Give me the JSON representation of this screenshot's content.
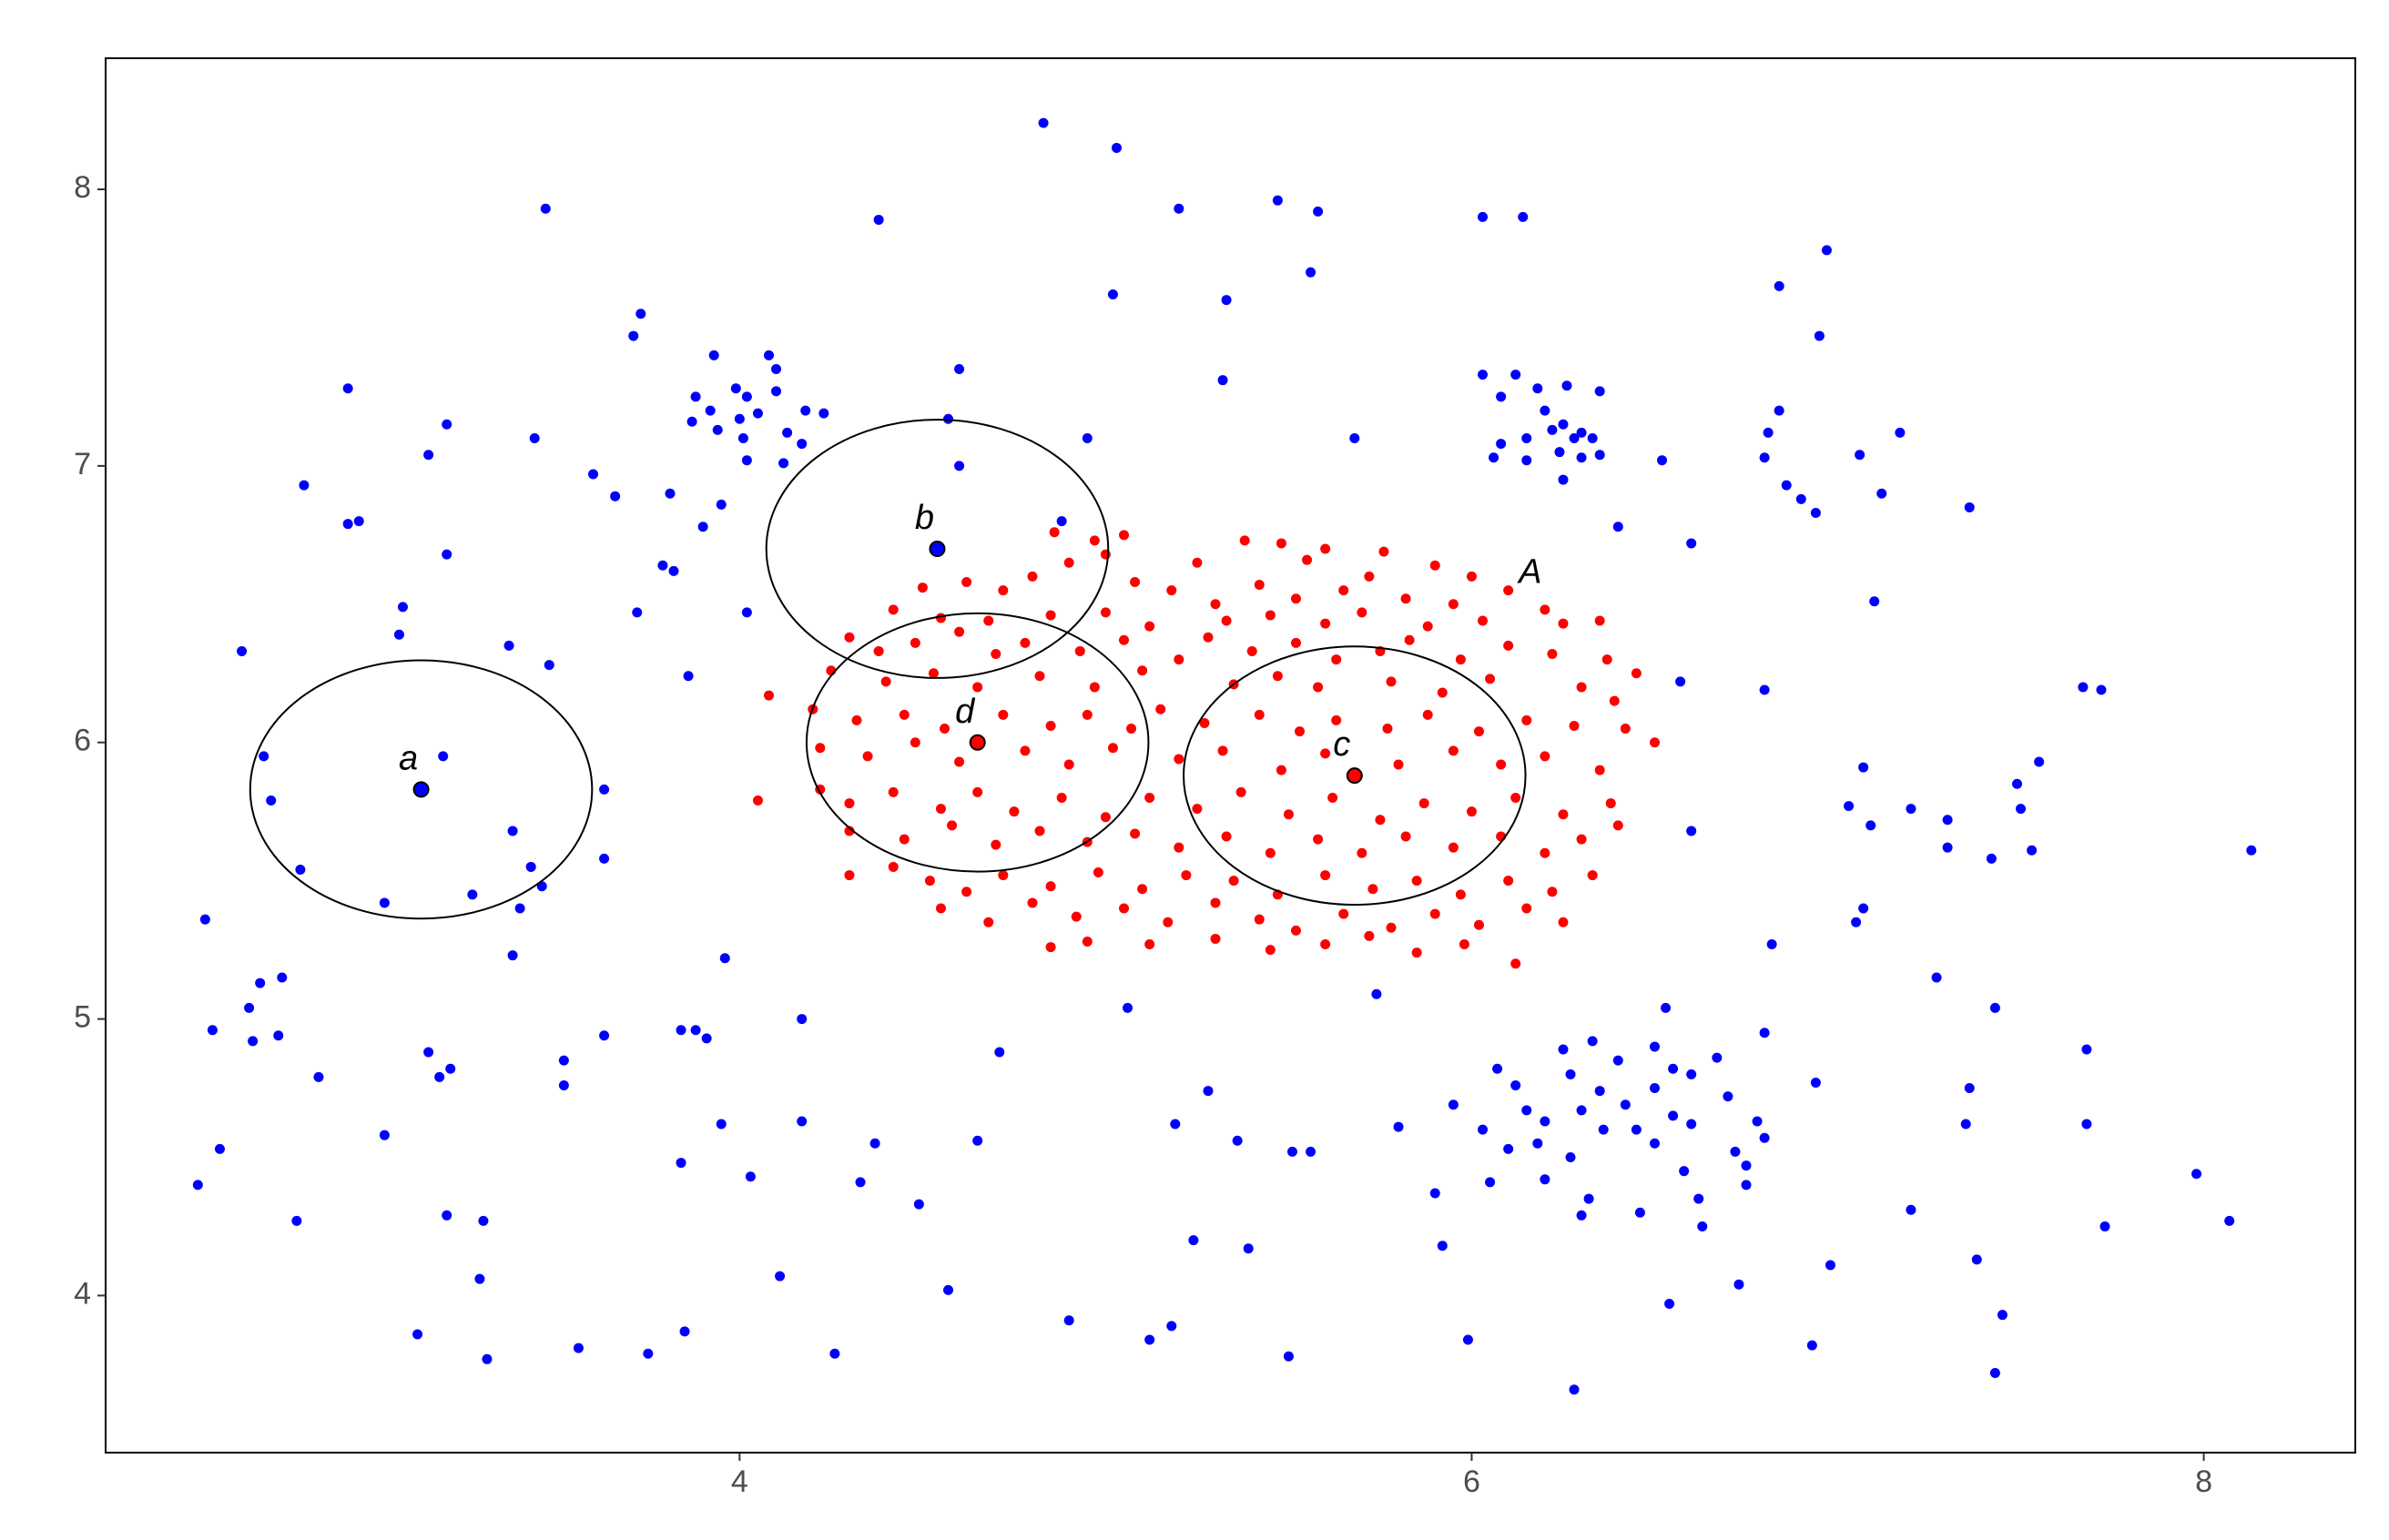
{
  "chart_data": {
    "type": "scatter",
    "xlim": [
      2.268,
      8.414
    ],
    "ylim": [
      3.432,
      8.474
    ],
    "xticks": [
      4,
      6,
      8
    ],
    "yticks": [
      4,
      5,
      6,
      7,
      8
    ],
    "series": [
      {
        "color": "#0000ff",
        "x": [
          4.83,
          5.03,
          3.47,
          4.38,
          5.2,
          5.47,
          5.58,
          6.03,
          6.14,
          5.56,
          5.02,
          5.33,
          3.73,
          3.71,
          6.97,
          6.84,
          6.95,
          2.93,
          3.2,
          3.15,
          3.44,
          2.81,
          2.93,
          2.96,
          3.2,
          3.6,
          3.66,
          3.81,
          3.9,
          3.79,
          3.82,
          3.72,
          4.02,
          3.08,
          3.07,
          2.64,
          3.37,
          3.48,
          3.86,
          3.93,
          4.08,
          4.1,
          3.99,
          4.02,
          3.88,
          3.92,
          4.0,
          4.05,
          3.87,
          3.94,
          4.1,
          4.18,
          4.01,
          4.13,
          4.17,
          4.02,
          4.12,
          3.95,
          4.23,
          4.6,
          4.57,
          4.6,
          4.95,
          4.88,
          5.32,
          5.68,
          6.03,
          6.12,
          6.08,
          6.18,
          6.26,
          6.35,
          6.2,
          6.25,
          6.3,
          6.22,
          6.28,
          6.33,
          6.08,
          6.15,
          6.24,
          6.3,
          6.35,
          6.25,
          6.06,
          6.15,
          6.4,
          6.52,
          6.84,
          6.81,
          6.8,
          6.86,
          6.9,
          6.94,
          7.06,
          7.12,
          7.17,
          7.36,
          7.1,
          6.6,
          6.57,
          6.8,
          7.67,
          7.72,
          8.13,
          7.07,
          7.03,
          7.09,
          7.2,
          7.3,
          7.3,
          7.42,
          7.49,
          7.55,
          7.53,
          7.5,
          7.07,
          7.05,
          6.82,
          7.27,
          7.43,
          6.6,
          2.7,
          2.72,
          2.8,
          3.19,
          3.63,
          3.38,
          3.43,
          3.46,
          3.27,
          3.4,
          3.03,
          3.63,
          2.54,
          3.38,
          2.75,
          2.69,
          2.56,
          2.66,
          2.67,
          2.74,
          3.52,
          3.52,
          3.63,
          3.15,
          3.18,
          3.21,
          2.85,
          3.03,
          2.58,
          2.52,
          2.79,
          3.2,
          3.3,
          3.29,
          3.12,
          3.31,
          3.56,
          3.75,
          3.85,
          3.84,
          3.88,
          3.91,
          3.84,
          3.95,
          3.96,
          4.03,
          4.11,
          4.17,
          4.17,
          4.33,
          4.37,
          4.49,
          4.26,
          4.57,
          4.65,
          4.71,
          5.06,
          5.19,
          5.24,
          5.28,
          5.36,
          5.39,
          5.51,
          5.56,
          5.5,
          4.9,
          5.12,
          5.18,
          5.74,
          5.8,
          5.9,
          5.92,
          5.99,
          6.28,
          5.95,
          6.03,
          6.07,
          6.12,
          6.1,
          6.05,
          6.15,
          6.18,
          6.2,
          6.25,
          6.27,
          6.2,
          6.3,
          6.35,
          6.33,
          6.4,
          6.42,
          6.36,
          6.27,
          6.32,
          6.3,
          6.45,
          6.5,
          6.5,
          6.5,
          6.55,
          6.55,
          6.58,
          6.6,
          6.6,
          6.62,
          6.63,
          6.67,
          6.7,
          6.72,
          6.75,
          6.75,
          6.78,
          6.8,
          6.46,
          6.53,
          6.54,
          6.73,
          6.8,
          6.94,
          6.98,
          6.93,
          7.2,
          7.36,
          7.35,
          7.38,
          7.45,
          7.43,
          7.68,
          7.68,
          7.73,
          7.98,
          8.07
        ],
        "values": [
          8.24,
          8.15,
          7.93,
          7.89,
          7.93,
          7.96,
          7.92,
          7.9,
          7.9,
          7.7,
          7.62,
          7.6,
          7.55,
          7.47,
          7.78,
          7.65,
          7.47,
          7.28,
          7.15,
          7.04,
          7.1,
          6.93,
          6.79,
          6.8,
          6.68,
          6.97,
          6.89,
          6.9,
          6.78,
          6.64,
          6.62,
          6.47,
          6.47,
          6.49,
          6.39,
          6.33,
          6.35,
          6.28,
          6.24,
          7.4,
          7.4,
          7.35,
          7.28,
          7.25,
          7.25,
          7.2,
          7.17,
          7.19,
          7.16,
          7.13,
          7.27,
          7.2,
          7.1,
          7.12,
          7.08,
          7.02,
          7.01,
          6.86,
          7.19,
          7.35,
          7.17,
          7.0,
          7.1,
          6.8,
          7.31,
          7.1,
          7.33,
          7.33,
          7.25,
          7.28,
          7.29,
          7.27,
          7.2,
          7.15,
          7.12,
          7.13,
          7.1,
          7.1,
          7.08,
          7.1,
          7.05,
          7.03,
          7.04,
          6.95,
          7.03,
          7.02,
          6.78,
          7.02,
          7.2,
          7.12,
          7.03,
          6.93,
          6.88,
          6.83,
          7.04,
          6.9,
          7.12,
          6.85,
          6.51,
          6.72,
          6.22,
          6.19,
          6.2,
          6.19,
          5.61,
          5.91,
          5.77,
          5.7,
          5.76,
          5.72,
          5.62,
          5.58,
          5.85,
          5.93,
          5.61,
          5.76,
          5.4,
          5.35,
          5.27,
          5.15,
          5.04,
          5.68,
          5.95,
          5.79,
          5.54,
          5.95,
          5.83,
          5.68,
          5.55,
          5.48,
          5.45,
          5.4,
          5.42,
          5.58,
          5.36,
          5.23,
          5.15,
          5.13,
          4.96,
          5.04,
          4.92,
          4.94,
          4.85,
          4.76,
          4.94,
          4.88,
          4.79,
          4.82,
          4.79,
          4.58,
          4.53,
          4.4,
          4.27,
          4.29,
          4.27,
          4.06,
          3.86,
          3.77,
          3.81,
          3.79,
          3.87,
          4.96,
          4.96,
          4.93,
          4.48,
          4.62,
          5.22,
          4.43,
          4.07,
          5.0,
          4.63,
          4.41,
          4.55,
          4.33,
          3.79,
          4.02,
          4.56,
          4.88,
          5.04,
          4.62,
          4.2,
          4.74,
          4.56,
          4.17,
          4.52,
          4.52,
          3.78,
          3.91,
          3.84,
          3.89,
          5.09,
          4.61,
          4.37,
          4.18,
          3.84,
          3.66,
          4.69,
          4.6,
          4.82,
          4.76,
          4.53,
          4.41,
          4.67,
          4.55,
          4.63,
          4.89,
          4.8,
          4.42,
          4.67,
          4.74,
          4.92,
          4.85,
          4.69,
          4.6,
          4.5,
          4.35,
          4.29,
          4.6,
          4.9,
          4.75,
          4.55,
          4.82,
          4.65,
          4.45,
          4.8,
          4.62,
          4.35,
          4.25,
          4.86,
          4.72,
          4.52,
          4.47,
          4.4,
          4.63,
          4.57,
          4.3,
          5.04,
          3.97,
          4.04,
          4.95,
          4.77,
          4.11,
          3.82,
          4.31,
          4.75,
          4.62,
          4.13,
          3.93,
          3.72,
          4.89,
          4.62,
          4.25,
          4.44,
          4.27
        ]
      },
      {
        "color": "#ff0000",
        "x": [
          4.86,
          4.97,
          5.05,
          5.38,
          5.48,
          5.6,
          5.76,
          4.9,
          5.0,
          5.25,
          5.55,
          5.9,
          6.0,
          4.5,
          4.62,
          4.72,
          4.8,
          5.08,
          5.18,
          5.3,
          5.42,
          5.52,
          5.65,
          5.72,
          5.82,
          5.95,
          6.1,
          6.2,
          4.42,
          4.55,
          4.68,
          4.85,
          5.0,
          5.12,
          5.33,
          5.45,
          5.6,
          5.7,
          5.88,
          6.03,
          6.25,
          6.35,
          4.3,
          4.38,
          4.48,
          4.6,
          4.7,
          4.78,
          4.93,
          5.05,
          5.2,
          5.28,
          5.4,
          5.52,
          5.63,
          5.75,
          5.83,
          5.97,
          6.1,
          6.22,
          6.37,
          6.45,
          4.25,
          4.4,
          4.53,
          4.65,
          4.82,
          4.97,
          5.1,
          5.35,
          5.47,
          5.58,
          5.78,
          5.92,
          6.05,
          6.3,
          6.39,
          4.08,
          4.2,
          4.32,
          4.45,
          4.56,
          4.72,
          4.85,
          4.95,
          5.07,
          5.15,
          5.27,
          5.42,
          5.53,
          5.63,
          5.77,
          5.88,
          6.02,
          6.15,
          6.28,
          6.42,
          6.5,
          4.22,
          4.35,
          4.48,
          4.6,
          4.78,
          4.9,
          5.02,
          5.2,
          5.32,
          5.48,
          5.6,
          5.8,
          5.95,
          6.08,
          6.2,
          6.35,
          4.05,
          4.22,
          4.3,
          4.42,
          4.55,
          4.65,
          4.75,
          4.88,
          5.0,
          5.12,
          5.25,
          5.37,
          5.5,
          5.62,
          5.75,
          5.87,
          6.0,
          6.12,
          6.25,
          6.38,
          4.3,
          4.45,
          4.58,
          4.7,
          4.82,
          4.95,
          5.08,
          5.2,
          5.33,
          5.45,
          5.58,
          5.7,
          5.82,
          5.95,
          6.08,
          6.2,
          6.3,
          6.4,
          4.3,
          4.42,
          4.52,
          4.62,
          4.72,
          4.85,
          4.98,
          5.1,
          5.22,
          5.35,
          5.47,
          5.6,
          5.73,
          5.85,
          5.97,
          6.1,
          6.22,
          6.33,
          4.55,
          4.68,
          4.8,
          4.92,
          5.05,
          5.17,
          5.3,
          5.42,
          5.52,
          5.65,
          5.78,
          5.9,
          6.02,
          6.15,
          6.25,
          4.85,
          4.95,
          5.12,
          5.3,
          5.45,
          5.6,
          5.72,
          5.85,
          5.98,
          6.12
        ],
        "values": [
          6.76,
          6.73,
          6.75,
          6.73,
          6.72,
          6.7,
          6.69,
          6.65,
          6.68,
          6.65,
          6.66,
          6.64,
          6.6,
          6.56,
          6.58,
          6.55,
          6.6,
          6.58,
          6.55,
          6.5,
          6.57,
          6.52,
          6.55,
          6.6,
          6.52,
          6.5,
          6.55,
          6.48,
          6.48,
          6.45,
          6.44,
          6.46,
          6.47,
          6.42,
          6.44,
          6.46,
          6.43,
          6.47,
          6.42,
          6.44,
          6.43,
          6.44,
          6.38,
          6.33,
          6.36,
          6.4,
          6.32,
          6.36,
          6.33,
          6.37,
          6.3,
          6.38,
          6.33,
          6.36,
          6.3,
          6.33,
          6.37,
          6.3,
          6.35,
          6.32,
          6.3,
          6.25,
          6.26,
          6.22,
          6.25,
          6.2,
          6.24,
          6.2,
          6.26,
          6.21,
          6.24,
          6.2,
          6.22,
          6.18,
          6.23,
          6.2,
          6.15,
          6.17,
          6.12,
          6.08,
          6.1,
          6.05,
          6.1,
          6.06,
          6.1,
          6.05,
          6.12,
          6.07,
          6.1,
          6.04,
          6.08,
          6.05,
          6.1,
          6.04,
          6.08,
          6.06,
          6.05,
          6.0,
          5.98,
          5.95,
          6.0,
          5.93,
          5.97,
          5.92,
          5.98,
          5.94,
          5.97,
          5.9,
          5.96,
          5.92,
          5.97,
          5.92,
          5.95,
          5.9,
          5.79,
          5.83,
          5.78,
          5.82,
          5.76,
          5.82,
          5.75,
          5.8,
          5.73,
          5.8,
          5.76,
          5.82,
          5.74,
          5.8,
          5.72,
          5.78,
          5.75,
          5.8,
          5.74,
          5.78,
          5.68,
          5.65,
          5.7,
          5.63,
          5.68,
          5.64,
          5.67,
          5.62,
          5.66,
          5.6,
          5.65,
          5.6,
          5.66,
          5.62,
          5.66,
          5.6,
          5.65,
          5.7,
          5.52,
          5.55,
          5.5,
          5.46,
          5.52,
          5.48,
          5.53,
          5.47,
          5.52,
          5.5,
          5.45,
          5.52,
          5.47,
          5.5,
          5.45,
          5.5,
          5.46,
          5.52,
          5.4,
          5.35,
          5.42,
          5.37,
          5.4,
          5.35,
          5.42,
          5.36,
          5.32,
          5.38,
          5.33,
          5.38,
          5.34,
          5.4,
          5.35,
          5.26,
          5.28,
          5.27,
          5.29,
          5.25,
          5.27,
          5.3,
          5.24,
          5.27,
          5.2
        ]
      }
    ],
    "highlighted_points": [
      {
        "label": "a",
        "x": 3.13,
        "y": 5.83,
        "color": "#0000ff",
        "radius": 0.467
      },
      {
        "label": "b",
        "x": 4.54,
        "y": 6.7,
        "color": "#0000ff",
        "radius": 0.467
      },
      {
        "label": "d",
        "x": 4.65,
        "y": 6.0,
        "color": "#ff0000",
        "radius": 0.467
      },
      {
        "label": "c",
        "x": 5.68,
        "y": 5.88,
        "color": "#ff0000",
        "radius": 0.467
      }
    ],
    "annotations": [
      {
        "text": "A",
        "x": 6.16,
        "y": 6.61
      }
    ]
  }
}
